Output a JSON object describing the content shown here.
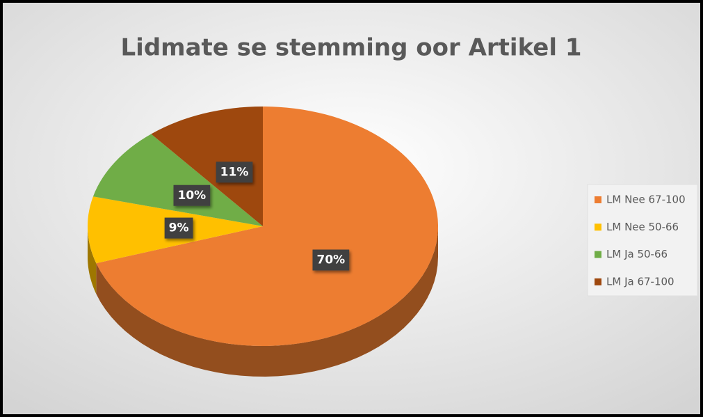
{
  "chart_data": {
    "type": "pie",
    "title": "Lidmate se stemming oor Artikel 1",
    "categories": [
      "LM Nee 67-100",
      "LM Nee 50-66",
      "LM Ja 50-66",
      "LM Ja 67-100"
    ],
    "values": [
      70,
      9,
      10,
      11
    ],
    "value_labels": [
      "70%",
      "9%",
      "10%",
      "11%"
    ],
    "colors": [
      "#ed7d31",
      "#ffc000",
      "#70ad47",
      "#9e480e"
    ],
    "legend": "right"
  }
}
